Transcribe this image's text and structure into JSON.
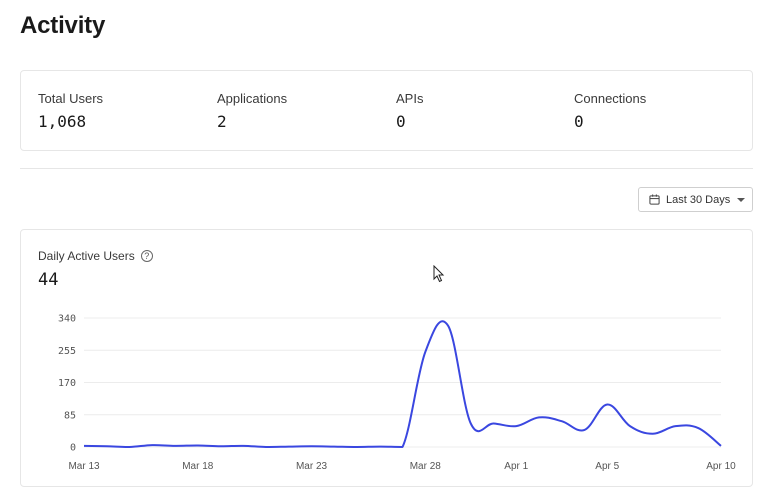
{
  "page": {
    "title": "Activity"
  },
  "stats": [
    {
      "label": "Total Users",
      "value": "1,068"
    },
    {
      "label": "Applications",
      "value": "2"
    },
    {
      "label": "APIs",
      "value": "0"
    },
    {
      "label": "Connections",
      "value": "0"
    }
  ],
  "date_range": {
    "label": "Last 30 Days",
    "icon": "calendar-icon"
  },
  "chart_panel": {
    "title": "Daily Active Users",
    "value": "44",
    "help_icon": "help-icon"
  },
  "colors": {
    "line": "#3a47e0",
    "grid": "#ececec"
  },
  "chart_data": {
    "type": "line",
    "title": "Daily Active Users",
    "xlabel": "",
    "ylabel": "",
    "ylim": [
      0,
      340
    ],
    "yticks": [
      "0",
      "85",
      "170",
      "255",
      "340"
    ],
    "xticks": [
      "Mar 13",
      "Mar 18",
      "Mar 23",
      "Mar 28",
      "Apr 1",
      "Apr 5",
      "Apr 10"
    ],
    "grid": true,
    "x": [
      "Mar 13",
      "Mar 14",
      "Mar 15",
      "Mar 16",
      "Mar 17",
      "Mar 18",
      "Mar 19",
      "Mar 20",
      "Mar 21",
      "Mar 22",
      "Mar 23",
      "Mar 24",
      "Mar 25",
      "Mar 26",
      "Mar 27",
      "Mar 28",
      "Mar 29",
      "Mar 30",
      "Mar 31",
      "Apr 1",
      "Apr 2",
      "Apr 3",
      "Apr 4",
      "Apr 5",
      "Apr 6",
      "Apr 7",
      "Apr 8",
      "Apr 9",
      "Apr 10"
    ],
    "series": [
      {
        "values": [
          3,
          2,
          0,
          5,
          3,
          4,
          2,
          3,
          0,
          1,
          2,
          1,
          0,
          1,
          0,
          250,
          320,
          62,
          62,
          55,
          78,
          68,
          45,
          112,
          55,
          35,
          55,
          50,
          3
        ]
      }
    ]
  }
}
